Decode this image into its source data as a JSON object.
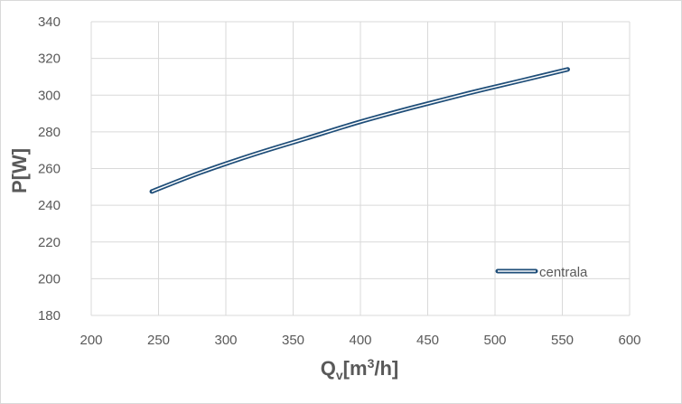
{
  "chart_data": {
    "type": "line",
    "xlabel": {
      "main": "Q",
      "sub": "v",
      "open": "[m",
      "sup": "3",
      "close": "/h]"
    },
    "ylabel": "P[W]",
    "xlim": [
      200,
      600
    ],
    "ylim": [
      180,
      340
    ],
    "xticks": [
      200,
      250,
      300,
      350,
      400,
      450,
      500,
      550,
      600
    ],
    "yticks": [
      180,
      200,
      220,
      240,
      260,
      280,
      300,
      320,
      340
    ],
    "grid": true,
    "legend_position": "right",
    "series": [
      {
        "name": "centrala",
        "color": "#1f4e79",
        "x": [
          245,
          280,
          320,
          360,
          400,
          440,
          480,
          520,
          554
        ],
        "y": [
          247.5,
          257.5,
          267.5,
          276.5,
          285.5,
          293.5,
          301.0,
          308.0,
          314.0
        ]
      }
    ]
  }
}
